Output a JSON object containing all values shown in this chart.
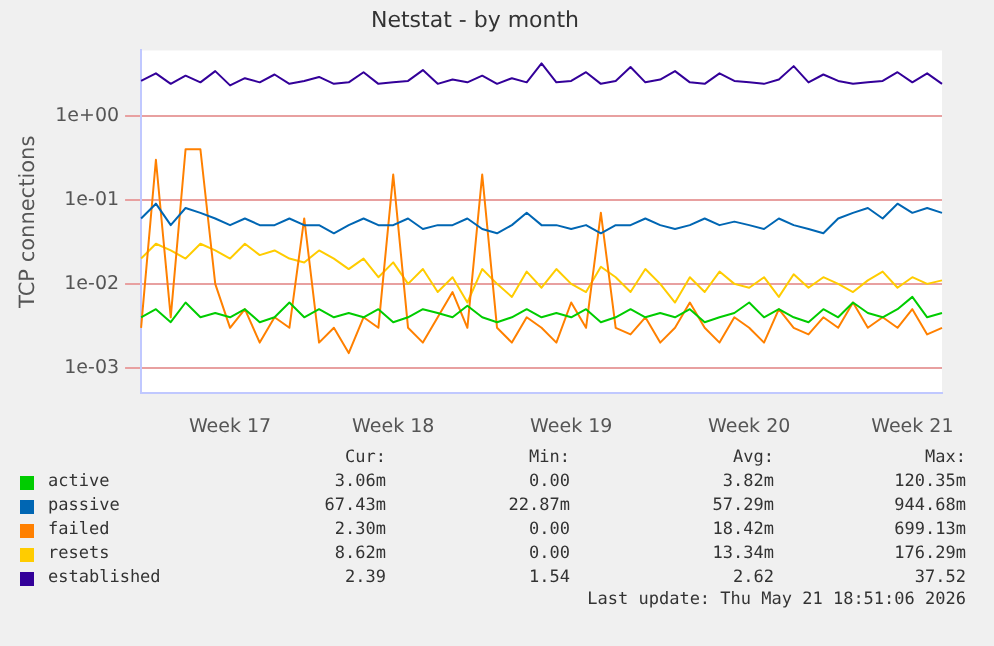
{
  "chart_data": {
    "type": "line",
    "title": "Netstat - by month",
    "ylabel": "TCP connections",
    "log": "y",
    "grid": "y",
    "legend": "bottom left",
    "marker": "none",
    "line_style": "solid",
    "categories": [
      null,
      null,
      null,
      null,
      null,
      null,
      "Week 17",
      null,
      null,
      null,
      null,
      null,
      null,
      null,
      null,
      null,
      null,
      "Week 18",
      null,
      null,
      null,
      null,
      null,
      null,
      null,
      null,
      null,
      null,
      null,
      "Week 19",
      null,
      null,
      null,
      null,
      null,
      null,
      null,
      null,
      null,
      null,
      null,
      "Week 20",
      null,
      null,
      null,
      null,
      null,
      null,
      null,
      null,
      null,
      null,
      "Week 21",
      null,
      null
    ],
    "ylim": [
      0.0005,
      6
    ],
    "yticks": [
      {
        "value": 0.001,
        "label": "1e-03"
      },
      {
        "value": 0.01,
        "label": "1e-02"
      },
      {
        "value": 0.1,
        "label": "1e-01"
      },
      {
        "value": 1,
        "label": "1e+00"
      }
    ],
    "series": [
      {
        "name": "active",
        "color": "#00cc00",
        "values": [
          0.004,
          0.005,
          0.0035,
          0.006,
          0.004,
          0.0045,
          0.004,
          0.005,
          0.0035,
          0.004,
          0.006,
          0.004,
          0.005,
          0.004,
          0.0045,
          0.004,
          0.005,
          0.0035,
          0.004,
          0.005,
          0.0045,
          0.004,
          0.0055,
          0.004,
          0.0035,
          0.004,
          0.005,
          0.004,
          0.0045,
          0.004,
          0.005,
          0.0035,
          0.004,
          0.005,
          0.004,
          0.0045,
          0.004,
          0.005,
          0.0035,
          0.004,
          0.0045,
          0.006,
          0.004,
          0.005,
          0.004,
          0.0035,
          0.005,
          0.004,
          0.006,
          0.0045,
          0.004,
          0.005,
          0.007,
          0.004,
          0.0045
        ]
      },
      {
        "name": "passive",
        "color": "#0066b3",
        "values": [
          0.06,
          0.09,
          0.05,
          0.08,
          0.07,
          0.06,
          0.05,
          0.06,
          0.05,
          0.05,
          0.06,
          0.05,
          0.05,
          0.04,
          0.05,
          0.06,
          0.05,
          0.05,
          0.06,
          0.045,
          0.05,
          0.05,
          0.06,
          0.045,
          0.04,
          0.05,
          0.07,
          0.05,
          0.05,
          0.045,
          0.05,
          0.04,
          0.05,
          0.05,
          0.06,
          0.05,
          0.045,
          0.05,
          0.06,
          0.05,
          0.055,
          0.05,
          0.045,
          0.06,
          0.05,
          0.045,
          0.04,
          0.06,
          0.07,
          0.08,
          0.06,
          0.09,
          0.07,
          0.08,
          0.07
        ]
      },
      {
        "name": "failed",
        "color": "#ff8000",
        "values": [
          0.003,
          0.3,
          0.004,
          0.4,
          0.4,
          0.01,
          0.003,
          0.005,
          0.002,
          0.004,
          0.003,
          0.06,
          0.002,
          0.003,
          0.0015,
          0.004,
          0.003,
          0.2,
          0.003,
          0.002,
          0.004,
          0.008,
          0.003,
          0.2,
          0.003,
          0.002,
          0.004,
          0.003,
          0.002,
          0.006,
          0.003,
          0.07,
          0.003,
          0.0025,
          0.004,
          0.002,
          0.003,
          0.006,
          0.003,
          0.002,
          0.004,
          0.003,
          0.002,
          0.005,
          0.003,
          0.0025,
          0.004,
          0.003,
          0.006,
          0.003,
          0.004,
          0.003,
          0.005,
          0.0025,
          0.003
        ]
      },
      {
        "name": "resets",
        "color": "#ffcc00",
        "values": [
          0.02,
          0.03,
          0.025,
          0.02,
          0.03,
          0.025,
          0.02,
          0.03,
          0.022,
          0.025,
          0.02,
          0.018,
          0.025,
          0.02,
          0.015,
          0.02,
          0.012,
          0.018,
          0.01,
          0.015,
          0.008,
          0.012,
          0.006,
          0.015,
          0.01,
          0.007,
          0.014,
          0.009,
          0.015,
          0.01,
          0.008,
          0.016,
          0.012,
          0.008,
          0.015,
          0.01,
          0.006,
          0.012,
          0.008,
          0.014,
          0.01,
          0.009,
          0.012,
          0.007,
          0.013,
          0.009,
          0.012,
          0.01,
          0.008,
          0.011,
          0.014,
          0.009,
          0.012,
          0.01,
          0.011
        ]
      },
      {
        "name": "established",
        "color": "#330099",
        "values": [
          2.6,
          3.2,
          2.4,
          3.0,
          2.5,
          3.4,
          2.3,
          2.8,
          2.5,
          3.1,
          2.4,
          2.6,
          2.9,
          2.4,
          2.5,
          3.3,
          2.4,
          2.5,
          2.6,
          3.5,
          2.4,
          2.7,
          2.5,
          3.0,
          2.4,
          2.8,
          2.5,
          4.2,
          2.5,
          2.6,
          3.3,
          2.4,
          2.6,
          3.8,
          2.5,
          2.7,
          3.4,
          2.5,
          2.4,
          3.2,
          2.6,
          2.5,
          2.4,
          2.7,
          3.9,
          2.5,
          3.1,
          2.6,
          2.4,
          2.5,
          2.6,
          3.3,
          2.5,
          3.2,
          2.4
        ]
      }
    ],
    "annotations": [
      "Cur:",
      "Min:",
      "Avg:",
      "Max:",
      "3.06m",
      "0.00",
      "3.82m",
      "120.35m",
      "67.43m",
      "22.87m",
      "57.29m",
      "944.68m",
      "2.30m",
      "0.00",
      "18.42m",
      "699.13m",
      "8.62m",
      "0.00",
      "13.34m",
      "176.29m",
      "2.39",
      "1.54",
      "2.62",
      "37.52",
      "Last update: Thu May 21 18:51:06 2026"
    ]
  }
}
